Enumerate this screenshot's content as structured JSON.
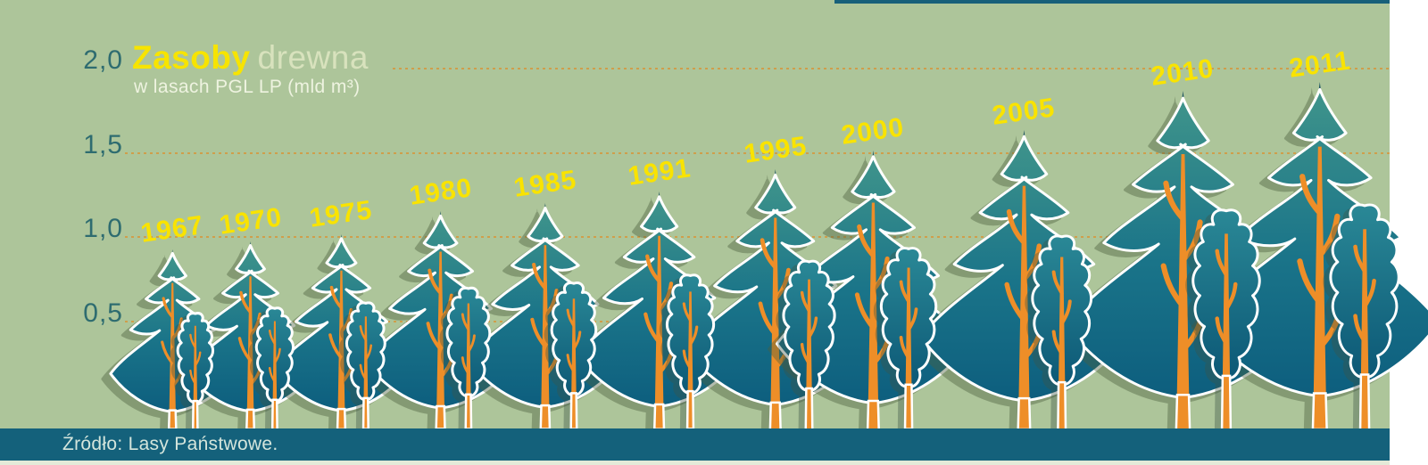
{
  "title": {
    "primary": "Zasoby",
    "secondary": "drewna",
    "subtitle": "w lasach PGL LP (mld m³)",
    "primary_color": "#f7e400",
    "secondary_color": "#d8e2bd",
    "subtitle_color": "#eef3e0"
  },
  "footer": {
    "source": "Źródło: Lasy Państwowe."
  },
  "axis": {
    "tick_labels": [
      "2,0",
      "1,5",
      "1,0",
      "0,5"
    ],
    "tick_values": [
      2.0,
      1.5,
      1.0,
      0.5
    ],
    "tick_color": "#2e6c70",
    "gridline_color": "#cf9e4b",
    "gridline_style": "dotted"
  },
  "chart_data": {
    "type": "bar",
    "variant": "pictorial-trees",
    "title": "Zasoby drewna",
    "subtitle": "w lasach PGL LP (mld m³)",
    "unit": "mld m³",
    "categories": [
      "1967",
      "1970",
      "1975",
      "1980",
      "1985",
      "1991",
      "1995",
      "2000",
      "2005",
      "2010",
      "2011"
    ],
    "values": [
      0.91,
      0.96,
      1.0,
      1.13,
      1.18,
      1.25,
      1.38,
      1.49,
      1.61,
      1.84,
      1.89
    ],
    "ylim": [
      0,
      2
    ],
    "ytick_labels": [
      "0,5",
      "1,0",
      "1,5",
      "2,0"
    ],
    "grid": "horizontal dotted lines at each 0.5 step",
    "legend": "none",
    "source": "Źródło: Lasy Państwowe."
  },
  "colors": {
    "background_green": "#adc59a",
    "bottom_bar": "#14617b",
    "top_strip": "#17607a",
    "bottom_strip": "#e4ead8",
    "page_margin": "#ffffff",
    "year_label": "#f9e300",
    "source_text": "#d4e5dc",
    "pine_gradient_top": "#3f948b",
    "pine_gradient_mid": "#1a7489",
    "pine_gradient_bottom": "#0d5e7e",
    "deciduous_gradient_top": "#2a8896",
    "deciduous_gradient_bottom": "#0c5876",
    "trunk_orange": "#ee8e28",
    "tree_outline": "#ffffff",
    "needle_tip": "#1b5260"
  }
}
